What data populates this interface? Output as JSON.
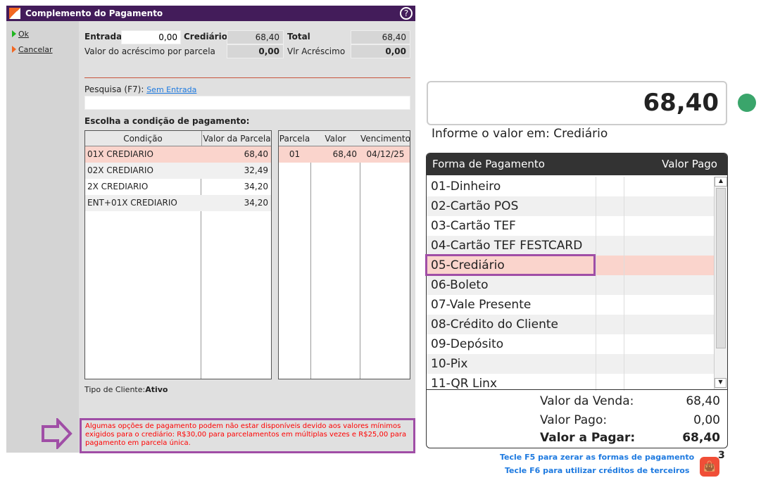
{
  "dialog": {
    "title": "Complemento do Pagamento",
    "help_icon": "?",
    "actions": [
      "Ok",
      "Cancelar"
    ],
    "entrada_label": "Entrada",
    "entrada_value": "0,00",
    "crediario_label": "Crediário",
    "crediario_value": "68,40",
    "total_label": "Total",
    "total_value": "68,40",
    "acrescimo_parcela_label": "Valor do acréscimo por parcela",
    "acrescimo_parcela_value": "0,00",
    "vlr_acrescimo_label": "Vlr Acréscimo",
    "vlr_acrescimo_value": "0,00",
    "search_label": "Pesquisa (F7):",
    "search_link": "Sem Entrada",
    "search_value": "",
    "choose_label": "Escolha a condição de pagamento:",
    "conditions": {
      "headers": [
        "Condição",
        "Valor da Parcela"
      ],
      "rows": [
        [
          "01X CREDIARIO",
          "68,40"
        ],
        [
          "02X CREDIARIO",
          "32,49"
        ],
        [
          "2X CREDIARIO",
          "34,20"
        ],
        [
          "ENT+01X CREDIARIO",
          "34,20"
        ]
      ]
    },
    "installments": {
      "headers": [
        "Parcela",
        "Valor",
        "Vencimento"
      ],
      "rows": [
        [
          "01",
          "68,40",
          "04/12/25"
        ]
      ]
    },
    "client_type_label": "Tipo de Cliente:",
    "client_type_value": "Ativo",
    "warning": "Algumas opções de pagamento podem não estar disponíveis devido aos valores mínimos exigidos para o crediário: R$30,00 para parcelamentos em múltiplas vezes e R$25,00 para pagamento em parcela única."
  },
  "payment": {
    "amount": "68,40",
    "prompt": "Informe o valor em: Crediário",
    "status_color": "#3aa56b",
    "headers": [
      "Forma de Pagamento",
      "Valor Pago"
    ],
    "methods": [
      "01-Dinheiro",
      "02-Cartão POS",
      "03-Cartão TEF",
      "04-Cartão TEF FESTCARD",
      "05-Crediário",
      "06-Boleto",
      "07-Vale Presente",
      "08-Crédito do Cliente",
      "09-Depósito",
      "10-Pix",
      "11-QR Linx"
    ],
    "selected": "05-Crediário",
    "venda_label": "Valor da Venda:",
    "venda_value": "68,40",
    "pago_label": "Valor Pago:",
    "pago_value": "0,00",
    "pagar_label": "Valor a Pagar:",
    "pagar_value": "68,40",
    "hint_f5": "Tecle F5 para zerar as formas de pagamento",
    "hint_f6": "Tecle F6 para utilizar créditos de terceiros",
    "bag_count": "3"
  },
  "colors": {
    "title_bar": "#431c5a",
    "highlight": "#a04ea6",
    "selected_row": "#fad4cc",
    "warning_text": "#ff0000"
  }
}
